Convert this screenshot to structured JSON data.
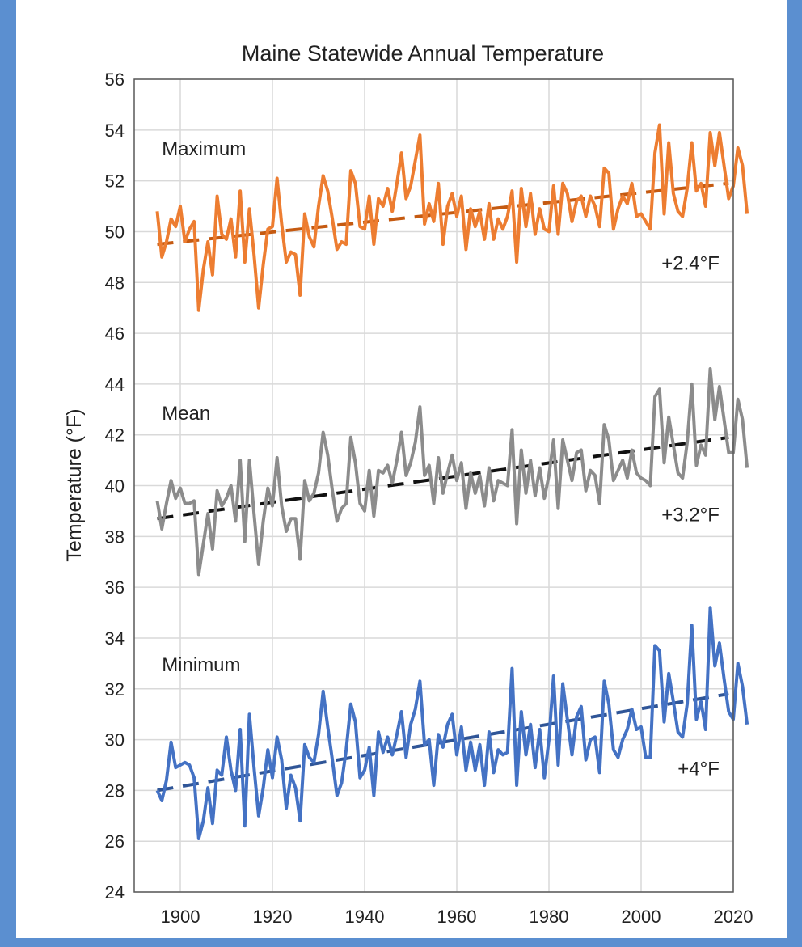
{
  "chart_data": {
    "type": "line",
    "title": "Maine Statewide Annual Temperature",
    "xlabel": "",
    "ylabel": "Temperature (°F)",
    "xlim": [
      1890,
      2020
    ],
    "ylim": [
      24,
      56
    ],
    "xticks": [
      1900,
      1920,
      1940,
      1960,
      1980,
      2000,
      2020
    ],
    "yticks": [
      24,
      26,
      28,
      30,
      32,
      34,
      36,
      38,
      40,
      42,
      44,
      46,
      48,
      50,
      52,
      54,
      56
    ],
    "grid": true,
    "legend": "none",
    "x_start": 1895,
    "x_end": 2019,
    "series": [
      {
        "name": "Maximum",
        "color": "#ed7d31",
        "values": [
          50.8,
          49.0,
          49.6,
          50.5,
          50.2,
          51.0,
          49.6,
          50.1,
          50.4,
          46.9,
          48.5,
          49.6,
          48.3,
          51.4,
          49.9,
          49.7,
          50.5,
          49.0,
          51.6,
          48.8,
          50.9,
          49.1,
          47.0,
          48.7,
          50.1,
          50.2,
          52.1,
          50.3,
          48.8,
          49.2,
          49.1,
          47.5,
          50.7,
          49.8,
          49.4,
          51.0,
          52.2,
          51.6,
          50.5,
          49.3,
          49.6,
          49.5,
          52.4,
          51.9,
          50.2,
          50.1,
          51.4,
          49.5,
          51.3,
          51.0,
          51.7,
          50.8,
          51.9,
          53.1,
          51.3,
          51.8,
          52.8,
          53.8,
          50.3,
          51.1,
          50.4,
          51.9,
          49.5,
          51.0,
          51.5,
          50.6,
          51.4,
          49.3,
          50.9,
          50.2,
          50.8,
          49.7,
          51.1,
          49.7,
          50.5,
          50.1,
          50.6,
          51.6,
          48.8,
          51.7,
          50.2,
          51.5,
          49.9,
          50.9,
          50.1,
          50.0,
          51.8,
          49.9,
          51.9,
          51.5,
          50.4,
          51.2,
          51.4,
          50.6,
          51.4,
          51.0,
          50.2,
          52.5,
          52.3,
          50.1,
          50.9,
          51.4,
          51.1,
          51.9,
          50.6,
          50.7,
          50.4,
          50.1,
          53.1,
          54.2,
          50.7,
          53.5,
          51.5,
          50.8,
          50.6,
          51.7,
          53.5,
          51.6,
          51.9,
          51.0,
          53.9,
          52.6,
          53.9,
          52.6,
          51.3,
          51.8,
          53.3,
          52.6,
          50.7
        ]
      },
      {
        "name": "Mean",
        "color": "#8c8c8c",
        "values": [
          39.4,
          38.3,
          39.3,
          40.2,
          39.5,
          39.9,
          39.3,
          39.3,
          39.4,
          36.5,
          37.7,
          38.9,
          37.5,
          39.8,
          39.2,
          39.5,
          40.0,
          38.6,
          41.0,
          37.8,
          41.0,
          38.9,
          36.9,
          38.6,
          39.9,
          39.2,
          41.1,
          39.2,
          38.2,
          38.7,
          38.7,
          37.1,
          40.2,
          39.4,
          39.7,
          40.5,
          42.1,
          41.2,
          39.8,
          38.6,
          39.1,
          39.3,
          41.9,
          40.9,
          39.3,
          39.0,
          40.6,
          38.8,
          40.6,
          40.5,
          40.8,
          40.1,
          41.0,
          42.1,
          40.4,
          40.9,
          41.7,
          43.1,
          40.4,
          40.8,
          39.3,
          41.1,
          39.7,
          40.5,
          41.2,
          40.2,
          40.9,
          39.1,
          40.5,
          39.7,
          40.4,
          39.2,
          40.7,
          39.4,
          40.2,
          40.1,
          40.0,
          42.2,
          38.5,
          41.4,
          39.7,
          41.0,
          39.6,
          40.7,
          39.5,
          40.4,
          41.8,
          39.1,
          41.8,
          41.0,
          40.2,
          41.3,
          41.4,
          39.8,
          40.6,
          40.4,
          39.3,
          42.4,
          41.8,
          40.2,
          40.6,
          41.0,
          40.3,
          41.4,
          40.5,
          40.3,
          40.2,
          40.0,
          43.5,
          43.8,
          40.9,
          42.7,
          41.6,
          40.5,
          40.3,
          41.7,
          44.0,
          40.8,
          41.6,
          41.2,
          44.6,
          42.6,
          43.9,
          42.6,
          41.3,
          41.3,
          43.4,
          42.6,
          40.7
        ]
      },
      {
        "name": "Minimum",
        "color": "#4472c4",
        "values": [
          28.0,
          27.6,
          28.4,
          29.9,
          28.9,
          29.0,
          29.1,
          29.0,
          28.5,
          26.1,
          26.8,
          28.1,
          26.7,
          28.8,
          28.6,
          30.1,
          28.8,
          28.0,
          30.4,
          26.6,
          31.0,
          28.9,
          27.0,
          28.1,
          29.6,
          28.5,
          30.1,
          29.2,
          27.3,
          28.6,
          28.1,
          26.8,
          29.8,
          29.3,
          29.1,
          30.2,
          31.9,
          30.5,
          29.2,
          27.8,
          28.3,
          29.6,
          31.4,
          30.7,
          28.5,
          28.8,
          29.7,
          27.8,
          30.3,
          29.5,
          30.1,
          29.4,
          30.2,
          31.1,
          29.3,
          30.6,
          31.2,
          32.3,
          29.8,
          30.0,
          28.2,
          30.2,
          29.7,
          30.6,
          31.0,
          29.4,
          30.5,
          28.8,
          29.9,
          28.8,
          29.8,
          28.2,
          30.3,
          28.7,
          29.6,
          29.4,
          29.5,
          32.8,
          28.2,
          31.1,
          29.4,
          30.6,
          28.9,
          30.4,
          28.5,
          30.0,
          32.5,
          29.0,
          32.2,
          30.8,
          29.4,
          30.9,
          31.3,
          29.2,
          30.0,
          30.1,
          28.7,
          32.3,
          31.4,
          29.6,
          29.3,
          30.0,
          30.4,
          31.2,
          30.4,
          30.5,
          29.3,
          29.3,
          33.7,
          33.5,
          30.7,
          32.6,
          31.5,
          30.3,
          30.1,
          31.4,
          34.5,
          30.8,
          31.5,
          30.4,
          35.2,
          32.9,
          33.8,
          32.4,
          31.1,
          30.8,
          33.0,
          32.1,
          30.6
        ]
      }
    ],
    "trends": [
      {
        "series": "Maximum",
        "color": "#c55a11",
        "start": 49.5,
        "end": 51.9
      },
      {
        "series": "Mean",
        "color": "#111111",
        "start": 38.7,
        "end": 41.9
      },
      {
        "series": "Minimum",
        "color": "#2f5597",
        "start": 28.0,
        "end": 31.8
      }
    ],
    "annotations": [
      {
        "text": "Maximum",
        "x": 1896,
        "y": 53.0,
        "anchor": "start"
      },
      {
        "text": "Mean",
        "x": 1896,
        "y": 42.6,
        "anchor": "start"
      },
      {
        "text": "Minimum",
        "x": 1896,
        "y": 32.7,
        "anchor": "start"
      },
      {
        "text": "+2.4°F",
        "x": 2017,
        "y": 48.5,
        "anchor": "end"
      },
      {
        "text": "+3.2°F",
        "x": 2017,
        "y": 38.6,
        "anchor": "end"
      },
      {
        "text": "+4°F",
        "x": 2017,
        "y": 28.6,
        "anchor": "end"
      }
    ]
  }
}
